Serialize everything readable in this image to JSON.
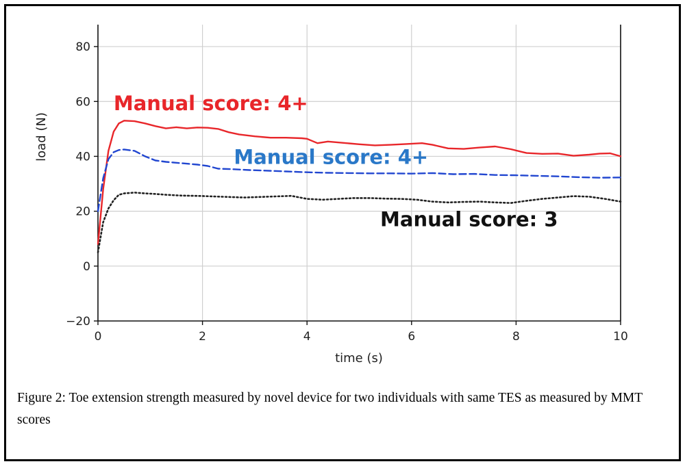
{
  "chart_data": {
    "type": "line",
    "xlabel": "time (s)",
    "ylabel": "load (N)",
    "xlim": [
      0,
      10
    ],
    "ylim": [
      -20,
      88
    ],
    "xticks": [
      0,
      2,
      4,
      6,
      8,
      10
    ],
    "yticks": [
      -20,
      0,
      20,
      40,
      60,
      80
    ],
    "grid": true,
    "legend": "none",
    "series": [
      {
        "color": "#e8262a",
        "style": "solid",
        "x": [
          0,
          0.1,
          0.2,
          0.3,
          0.4,
          0.5,
          0.7,
          0.9,
          1.1,
          1.3,
          1.5,
          1.7,
          1.9,
          2.1,
          2.3,
          2.5,
          2.7,
          3.0,
          3.3,
          3.6,
          3.9,
          4.0,
          4.2,
          4.4,
          4.7,
          5.0,
          5.3,
          5.6,
          5.9,
          6.2,
          6.4,
          6.7,
          7.0,
          7.3,
          7.6,
          7.9,
          8.2,
          8.5,
          8.8,
          9.1,
          9.4,
          9.6,
          9.8,
          10.0
        ],
        "y": [
          8,
          28,
          42,
          49,
          52,
          53,
          52.8,
          52,
          51,
          50.2,
          50.6,
          50.2,
          50.5,
          50.4,
          50,
          48.8,
          48,
          47.3,
          46.8,
          46.8,
          46.6,
          46.4,
          44.8,
          45.4,
          44.9,
          44.4,
          44,
          44.2,
          44.5,
          44.8,
          44.2,
          42.9,
          42.7,
          43.2,
          43.6,
          42.6,
          41.2,
          40.9,
          41,
          40.2,
          40.6,
          41,
          41.1,
          40
        ]
      },
      {
        "color": "#2146d0",
        "style": "dashed",
        "x": [
          0,
          0.1,
          0.2,
          0.3,
          0.4,
          0.5,
          0.7,
          0.9,
          1.1,
          1.3,
          1.6,
          1.9,
          2.1,
          2.3,
          2.6,
          2.9,
          3.2,
          3.6,
          4.0,
          4.4,
          4.8,
          5.2,
          5.6,
          6.0,
          6.4,
          6.8,
          7.2,
          7.6,
          8.0,
          8.4,
          8.8,
          9.2,
          9.6,
          10.0
        ],
        "y": [
          20,
          32,
          39,
          41.5,
          42.3,
          42.5,
          42,
          40,
          38.5,
          38,
          37.5,
          37,
          36.5,
          35.5,
          35.3,
          35,
          34.8,
          34.5,
          34.2,
          34,
          33.9,
          33.8,
          33.8,
          33.7,
          33.9,
          33.5,
          33.6,
          33.2,
          33.1,
          32.9,
          32.7,
          32.4,
          32.2,
          32.3
        ]
      },
      {
        "color": "#222222",
        "style": "dotted",
        "x": [
          0,
          0.1,
          0.2,
          0.3,
          0.4,
          0.5,
          0.7,
          0.9,
          1.1,
          1.3,
          1.6,
          1.9,
          2.2,
          2.5,
          2.8,
          3.1,
          3.4,
          3.7,
          4.0,
          4.3,
          4.6,
          4.9,
          5.2,
          5.5,
          5.8,
          6.1,
          6.4,
          6.7,
          7.0,
          7.3,
          7.6,
          7.9,
          8.2,
          8.5,
          8.8,
          9.1,
          9.4,
          9.7,
          10.0
        ],
        "y": [
          5,
          16,
          21,
          24,
          26,
          26.5,
          26.8,
          26.5,
          26.3,
          26,
          25.7,
          25.6,
          25.4,
          25.2,
          25,
          25.2,
          25.4,
          25.6,
          24.5,
          24.2,
          24.5,
          24.8,
          24.8,
          24.6,
          24.5,
          24.2,
          23.5,
          23.2,
          23.4,
          23.5,
          23.2,
          23,
          23.8,
          24.5,
          25,
          25.5,
          25.3,
          24.5,
          23.5
        ]
      }
    ],
    "annotations": [
      {
        "text": "Manual score: 4+",
        "x": 0.3,
        "y": 56.8,
        "color": "#e8262a"
      },
      {
        "text": "Manual score: 4+",
        "x": 2.6,
        "y": 37.2,
        "color": "#2a78c8"
      },
      {
        "text": "Manual score: 3",
        "x": 5.4,
        "y": 14.6,
        "color": "#111111"
      }
    ]
  },
  "caption": "Figure 2: Toe extension strength measured by novel device for two individuals with same TES as measured by MMT scores"
}
